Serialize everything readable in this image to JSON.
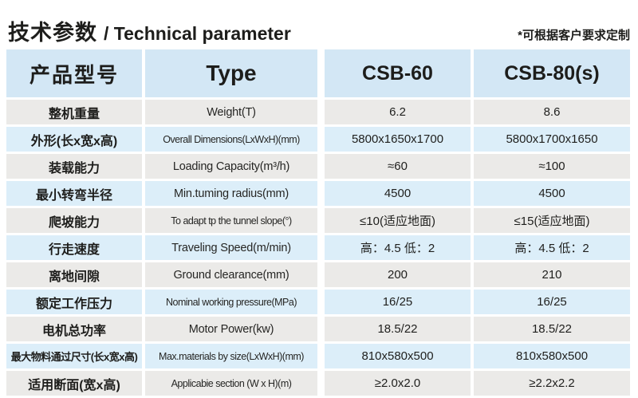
{
  "header": {
    "title_zh": "技术参数",
    "title_en": "/ Technical parameter",
    "note": "*可根据客户要求定制"
  },
  "table": {
    "columns": [
      "产品型号",
      "Type",
      "CSB-60",
      "CSB-80(s)"
    ],
    "rows": [
      {
        "zh": "整机重量",
        "en": "Weight(T)",
        "csb60": "6.2",
        "csb80": "8.6"
      },
      {
        "zh": "外形(长x宽x高)",
        "en": "Overall Dimensions(LxWxH)(mm)",
        "csb60": "5800x1650x1700",
        "csb80": "5800x1700x1650"
      },
      {
        "zh": "装载能力",
        "en": "Loading Capacity(m³/h)",
        "csb60": "≈60",
        "csb80": "≈100"
      },
      {
        "zh": "最小转弯半径",
        "en": "Min.tuming radius(mm)",
        "csb60": "4500",
        "csb80": "4500"
      },
      {
        "zh": "爬坡能力",
        "en": "To adapt tp the tunnel slope(°)",
        "csb60": "≤10(适应地面)",
        "csb80": "≤15(适应地面)"
      },
      {
        "zh": "行走速度",
        "en": "Traveling Speed(m/min)",
        "csb60": "高：4.5 低：2",
        "csb80": "高：4.5 低：2"
      },
      {
        "zh": "离地间隙",
        "en": "Ground clearance(mm)",
        "csb60": "200",
        "csb80": "210"
      },
      {
        "zh": "额定工作压力",
        "en": "Nominal working pressure(MPa)",
        "csb60": "16/25",
        "csb80": "16/25"
      },
      {
        "zh": "电机总功率",
        "en": "Motor Power(kw)",
        "csb60": "18.5/22",
        "csb80": "18.5/22"
      },
      {
        "zh": "最大物料通过尺寸(长x宽x高)",
        "en": "Max.materials by size(LxWxH)(mm)",
        "csb60": "810x580x500",
        "csb80": "810x580x500"
      },
      {
        "zh": "适用断面(宽x高)",
        "en": "Applicabie section (W x H)(m)",
        "csb60": "≥2.0x2.0",
        "csb80": "≥2.2x2.2"
      }
    ]
  },
  "colors": {
    "header_blue": "#d3e7f5",
    "row_blue": "#dceef9",
    "row_gray": "#ebeae8",
    "text": "#1d1d1b"
  }
}
